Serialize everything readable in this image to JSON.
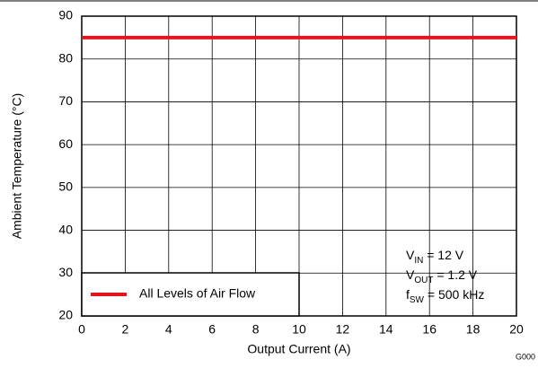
{
  "chart_data": {
    "type": "line",
    "x": [
      0,
      20
    ],
    "series": [
      {
        "name": "All Levels of Air Flow",
        "color": "#e8141b",
        "values": [
          85,
          85
        ]
      }
    ],
    "xlim": [
      0,
      20
    ],
    "xticks": [
      0,
      2,
      4,
      6,
      8,
      10,
      12,
      14,
      16,
      18,
      20
    ],
    "ylim": [
      20,
      90
    ],
    "yticks": [
      20,
      30,
      40,
      50,
      60,
      70,
      80,
      90
    ],
    "grid": true,
    "legend": "lower left",
    "xlabel": "Output Current (A)",
    "ylabel": "Ambient Temperature (°C)",
    "annotations": [
      {
        "text": "V",
        "sub": "IN",
        "rest": " = 12 V"
      },
      {
        "text": "V",
        "sub": "OUT",
        "rest": " = 1.2 V"
      },
      {
        "text": "f",
        "sub": "SW",
        "rest": " = 500 kHz"
      }
    ],
    "code": "G000"
  }
}
